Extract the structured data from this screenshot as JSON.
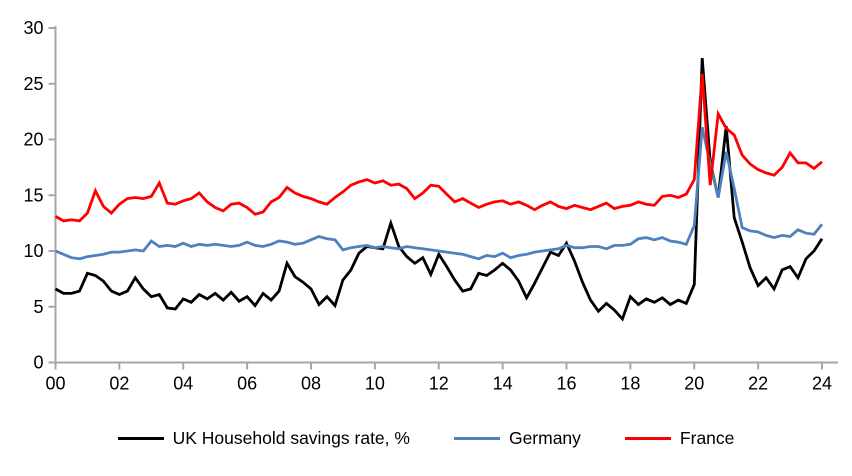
{
  "chart_data": {
    "type": "line",
    "title": "",
    "xlabel": "",
    "ylabel": "",
    "ylim": [
      0,
      30
    ],
    "y_ticks": [
      0,
      5,
      10,
      15,
      20,
      25,
      30
    ],
    "x_start_year": 2000,
    "points_per_year": 4,
    "x_tick_labels": [
      "00",
      "02",
      "04",
      "06",
      "08",
      "10",
      "12",
      "14",
      "16",
      "18",
      "20",
      "22",
      "24"
    ],
    "x_tick_every_points": 8,
    "grid": "off",
    "legend_position": "bottom",
    "axis_color": "#A6A6A6",
    "tick_label_color": "#000000",
    "series": [
      {
        "name": "UK Household savings rate, %",
        "color": "#000000",
        "values": [
          6.6,
          6.2,
          6.2,
          6.4,
          8.0,
          7.8,
          7.3,
          6.4,
          6.1,
          6.4,
          7.6,
          6.6,
          5.9,
          6.1,
          4.9,
          4.8,
          5.7,
          5.4,
          6.1,
          5.7,
          6.2,
          5.6,
          6.3,
          5.5,
          5.9,
          5.1,
          6.2,
          5.6,
          6.4,
          8.9,
          7.7,
          7.2,
          6.6,
          5.2,
          5.9,
          5.1,
          7.4,
          8.3,
          9.8,
          10.4,
          10.3,
          10.2,
          12.5,
          10.4,
          9.5,
          8.9,
          9.4,
          7.9,
          9.7,
          8.6,
          7.4,
          6.4,
          6.6,
          8.0,
          7.8,
          8.3,
          8.9,
          8.3,
          7.3,
          5.8,
          7.1,
          8.5,
          9.9,
          9.6,
          10.7,
          9.1,
          7.2,
          5.6,
          4.6,
          5.3,
          4.7,
          3.9,
          5.9,
          5.2,
          5.7,
          5.4,
          5.8,
          5.2,
          5.6,
          5.3,
          7.0,
          27.3,
          18.0,
          14.8,
          21.2,
          13.0,
          10.8,
          8.5,
          6.9,
          7.6,
          6.6,
          8.3,
          8.6,
          7.6,
          9.3,
          10.0,
          11.1
        ]
      },
      {
        "name": "Germany",
        "color": "#4E81BD",
        "values": [
          10.0,
          9.7,
          9.4,
          9.3,
          9.5,
          9.6,
          9.7,
          9.9,
          9.9,
          10.0,
          10.1,
          10.0,
          10.9,
          10.4,
          10.5,
          10.4,
          10.7,
          10.4,
          10.6,
          10.5,
          10.6,
          10.5,
          10.4,
          10.5,
          10.8,
          10.5,
          10.4,
          10.6,
          10.9,
          10.8,
          10.6,
          10.7,
          11.0,
          11.3,
          11.1,
          11.0,
          10.1,
          10.3,
          10.4,
          10.5,
          10.3,
          10.4,
          10.3,
          10.2,
          10.4,
          10.3,
          10.2,
          10.1,
          10.0,
          9.9,
          9.8,
          9.7,
          9.5,
          9.3,
          9.6,
          9.5,
          9.8,
          9.4,
          9.6,
          9.7,
          9.9,
          10.0,
          10.1,
          10.2,
          10.5,
          10.3,
          10.3,
          10.4,
          10.4,
          10.2,
          10.5,
          10.5,
          10.6,
          11.1,
          11.2,
          11.0,
          11.2,
          10.9,
          10.8,
          10.6,
          12.3,
          21.1,
          17.8,
          14.8,
          18.9,
          15.6,
          12.1,
          11.8,
          11.7,
          11.4,
          11.2,
          11.4,
          11.3,
          11.9,
          11.6,
          11.5,
          12.4
        ]
      },
      {
        "name": "France",
        "color": "#FF0000",
        "values": [
          13.1,
          12.7,
          12.8,
          12.7,
          13.4,
          15.4,
          14.0,
          13.4,
          14.2,
          14.7,
          14.8,
          14.7,
          14.9,
          16.1,
          14.3,
          14.2,
          14.5,
          14.7,
          15.2,
          14.4,
          13.9,
          13.6,
          14.2,
          14.3,
          13.9,
          13.3,
          13.5,
          14.4,
          14.8,
          15.7,
          15.2,
          14.9,
          14.7,
          14.4,
          14.2,
          14.8,
          15.3,
          15.9,
          16.2,
          16.4,
          16.1,
          16.3,
          15.9,
          16.0,
          15.6,
          14.7,
          15.2,
          15.9,
          15.8,
          15.1,
          14.4,
          14.7,
          14.3,
          13.9,
          14.2,
          14.4,
          14.5,
          14.2,
          14.4,
          14.1,
          13.7,
          14.1,
          14.4,
          14.0,
          13.8,
          14.1,
          13.9,
          13.7,
          14.0,
          14.3,
          13.8,
          14.0,
          14.1,
          14.4,
          14.2,
          14.1,
          14.9,
          15.0,
          14.8,
          15.1,
          16.4,
          25.9,
          15.9,
          22.3,
          21.0,
          20.4,
          18.6,
          17.8,
          17.3,
          17.0,
          16.8,
          17.5,
          18.8,
          17.9,
          17.9,
          17.4,
          18.0
        ]
      }
    ]
  },
  "legend": {
    "items": [
      {
        "label": "UK Household savings rate, %",
        "color": "#000000"
      },
      {
        "label": "Germany",
        "color": "#4E81BD"
      },
      {
        "label": "France",
        "color": "#FF0000"
      }
    ]
  }
}
